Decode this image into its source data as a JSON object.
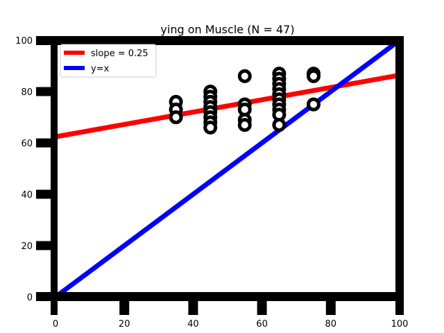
{
  "chart_data": {
    "type": "scatter",
    "title": "ying on Muscle (N = 47)",
    "xlabel": "",
    "ylabel": "",
    "xlim": [
      0,
      100
    ],
    "ylim": [
      0,
      100
    ],
    "xticks": [
      0,
      20,
      40,
      60,
      80,
      100
    ],
    "yticks": [
      0,
      20,
      40,
      60,
      80,
      100
    ],
    "grid": false,
    "legend_position": "top-left",
    "colors": {
      "regression": "#ff0000",
      "identity": "#0000ff",
      "points": "#000000"
    },
    "series": [
      {
        "type": "scatter",
        "points": [
          [
            35,
            76
          ],
          [
            35,
            73
          ],
          [
            35,
            70
          ],
          [
            45,
            80
          ],
          [
            45,
            78
          ],
          [
            45,
            76
          ],
          [
            45,
            74
          ],
          [
            45,
            72
          ],
          [
            45,
            70
          ],
          [
            45,
            68
          ],
          [
            45,
            66
          ],
          [
            55,
            86
          ],
          [
            55,
            75
          ],
          [
            55,
            73
          ],
          [
            55,
            69
          ],
          [
            55,
            67
          ],
          [
            65,
            87
          ],
          [
            65,
            85
          ],
          [
            65,
            83
          ],
          [
            65,
            81
          ],
          [
            65,
            79
          ],
          [
            65,
            77
          ],
          [
            65,
            75
          ],
          [
            65,
            73
          ],
          [
            65,
            71
          ],
          [
            65,
            67
          ],
          [
            75,
            87
          ],
          [
            75,
            86
          ],
          [
            75,
            75
          ]
        ]
      },
      {
        "type": "line",
        "name": "slope = 0.25",
        "x": [
          0,
          100
        ],
        "y": [
          62.4,
          86.4
        ]
      },
      {
        "type": "line",
        "name": "y=x",
        "x": [
          0,
          100
        ],
        "y": [
          0,
          100
        ]
      }
    ]
  }
}
